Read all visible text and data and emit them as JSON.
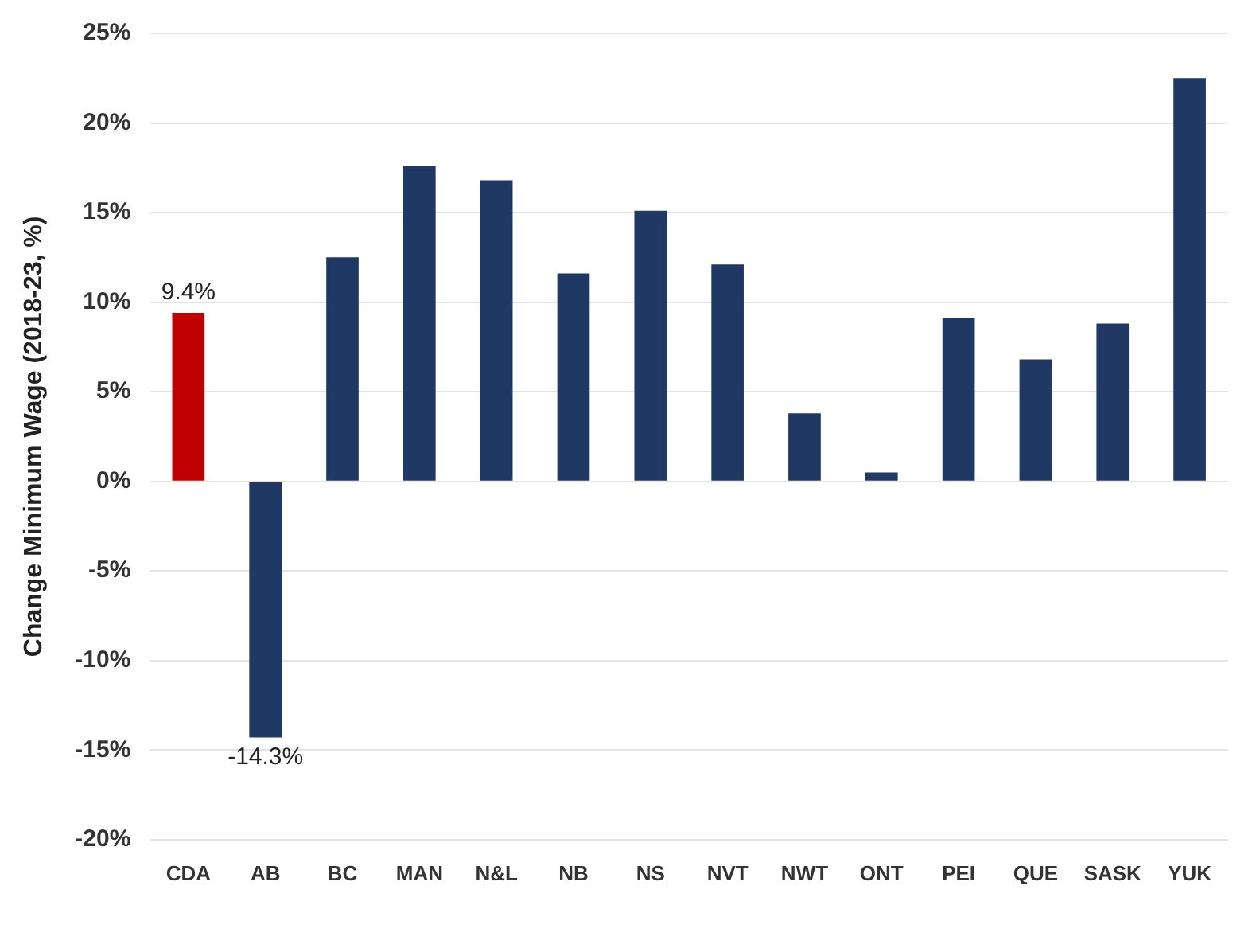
{
  "chart_data": {
    "type": "bar",
    "ylabel": "Change Minimum Wage (2018-23, %)",
    "categories": [
      "CDA",
      "AB",
      "BC",
      "MAN",
      "N&L",
      "NB",
      "NS",
      "NVT",
      "NWT",
      "ONT",
      "PEI",
      "QUE",
      "SASK",
      "YUK"
    ],
    "values": [
      9.4,
      -14.3,
      12.5,
      17.6,
      16.8,
      11.6,
      15.1,
      12.1,
      3.8,
      0.5,
      9.1,
      6.8,
      8.8,
      22.5
    ],
    "colors": [
      "#c00000",
      "#1f3864",
      "#1f3864",
      "#1f3864",
      "#1f3864",
      "#1f3864",
      "#1f3864",
      "#1f3864",
      "#1f3864",
      "#1f3864",
      "#1f3864",
      "#1f3864",
      "#1f3864",
      "#1f3864"
    ],
    "value_labels": [
      "9.4%",
      "-14.3%",
      null,
      null,
      null,
      null,
      null,
      null,
      null,
      null,
      null,
      null,
      null,
      null
    ],
    "ylim": [
      -20,
      25
    ],
    "yticks": [
      {
        "value": -20,
        "label": "-20%"
      },
      {
        "value": -15,
        "label": "-15%"
      },
      {
        "value": -10,
        "label": "-10%"
      },
      {
        "value": -5,
        "label": "-5%"
      },
      {
        "value": 0,
        "label": "0%"
      },
      {
        "value": 5,
        "label": "5%"
      },
      {
        "value": 10,
        "label": "10%"
      },
      {
        "value": 15,
        "label": "15%"
      },
      {
        "value": 20,
        "label": "20%"
      },
      {
        "value": 25,
        "label": "25%"
      }
    ],
    "grid": "y",
    "legend": false
  }
}
